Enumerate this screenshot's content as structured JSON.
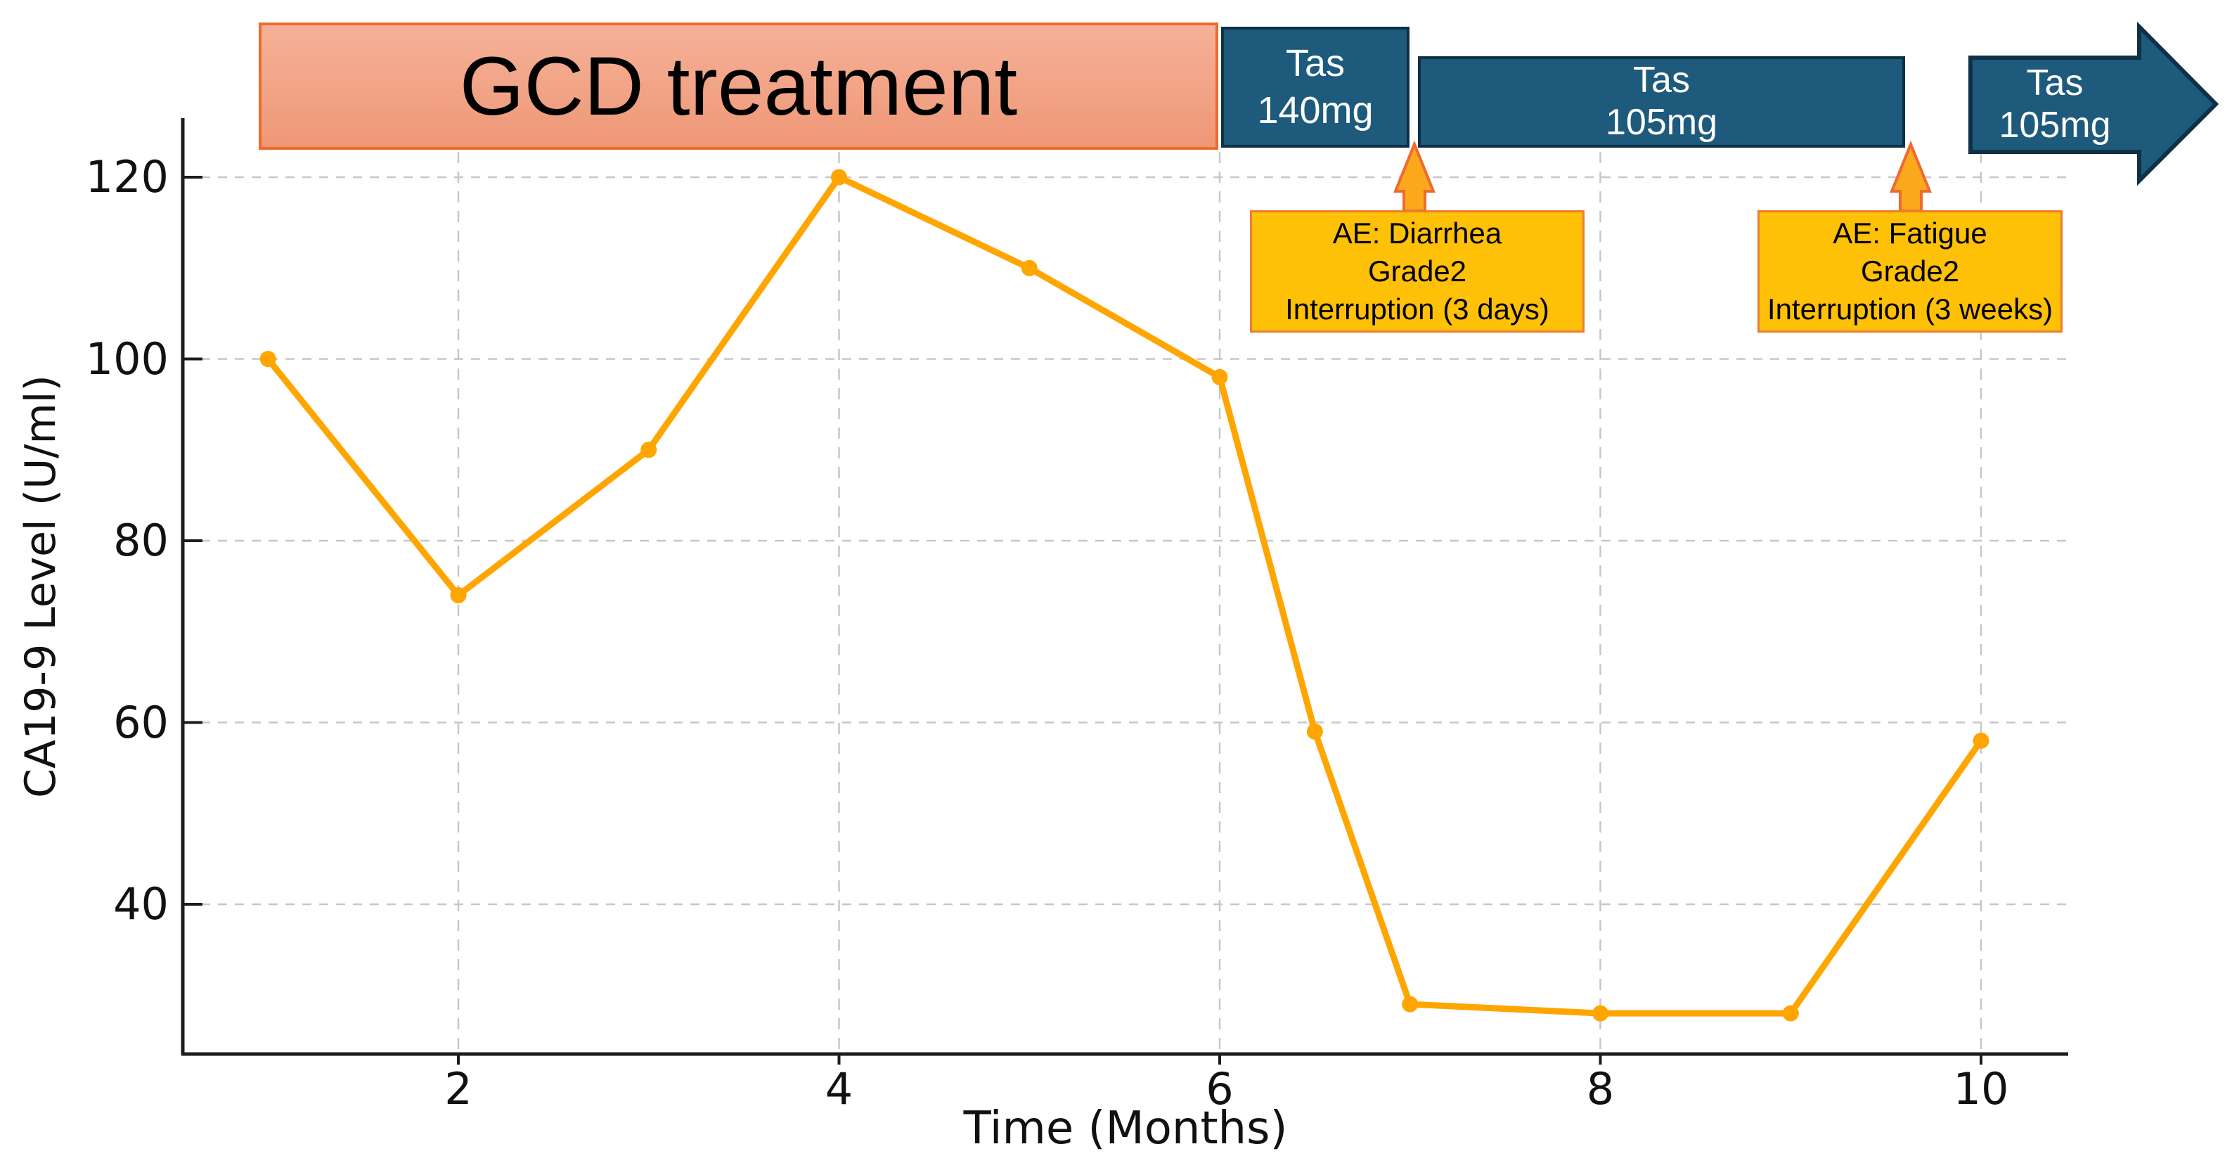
{
  "chart_data": {
    "type": "line",
    "title": "",
    "xlabel": "Time (Months)",
    "ylabel": "CA19-9 Level (U/ml)",
    "series": [
      {
        "name": "CA19-9",
        "x": [
          1,
          2,
          3,
          4,
          5,
          6,
          6.5,
          7,
          8,
          9,
          10
        ],
        "y": [
          100,
          74,
          90,
          120,
          110,
          98,
          59,
          29,
          28,
          28,
          58
        ]
      }
    ],
    "x_ticks": [
      {
        "label": "2",
        "value": 2
      },
      {
        "label": "4",
        "value": 4
      },
      {
        "label": "6",
        "value": 6
      },
      {
        "label": "8",
        "value": 8
      },
      {
        "label": "10",
        "value": 10
      }
    ],
    "y_ticks": [
      {
        "label": "120",
        "value": 120
      },
      {
        "label": "100",
        "value": 100
      },
      {
        "label": "80",
        "value": 80
      },
      {
        "label": "60",
        "value": 60
      },
      {
        "label": "40",
        "value": 40
      }
    ],
    "xlim": [
      0.55,
      11.05
    ],
    "ylim": [
      23.5,
      126.8
    ],
    "grid": true,
    "grid_style": "dashed",
    "line_color": "#FFA500",
    "marker": "circle",
    "legend_position": "none"
  },
  "timeline_bars": {
    "gcd": {
      "label": "GCD treatment",
      "start_month": 1,
      "end_month": 6,
      "fill_top": "#F5B198",
      "fill_bottom": "#EF9777",
      "border": "#ED6B2B"
    },
    "tas140": {
      "line1": "Tas",
      "line2": "140mg",
      "start_month": 6,
      "end_month": 7,
      "fill": "#1D5A7C",
      "border": "#0F3047"
    },
    "tas105": {
      "line1": "Tas",
      "line2": "105mg",
      "start_month": 7,
      "end_month": 9.6,
      "fill": "#1D5A7C",
      "border": "#0F3047"
    },
    "tas105_arrow": {
      "line1": "Tas",
      "line2": "105mg",
      "start_month": 9.9,
      "fill": "#1D5A7C",
      "border": "#0F3047"
    }
  },
  "annotations": [
    {
      "lines": [
        "AE: Diarrhea",
        "Grade2",
        "Interruption (3 days)"
      ],
      "points_to_month": 7,
      "fill": "#FFC008",
      "border": "#ED7D31",
      "arrow_fill": "#FCA81C",
      "arrow_border": "#EE6A2E"
    },
    {
      "lines": [
        "AE: Fatigue",
        "Grade2",
        "Interruption (3 weeks)"
      ],
      "points_to_month": 9.75,
      "fill": "#FFC008",
      "border": "#ED7D31",
      "arrow_fill": "#FCA81C",
      "arrow_border": "#EE6A2E"
    }
  ],
  "colors": {
    "background": "#ffffff",
    "grid": "#c7c7c7",
    "spine": "#1c1c1c",
    "axis_text": "#111111"
  }
}
